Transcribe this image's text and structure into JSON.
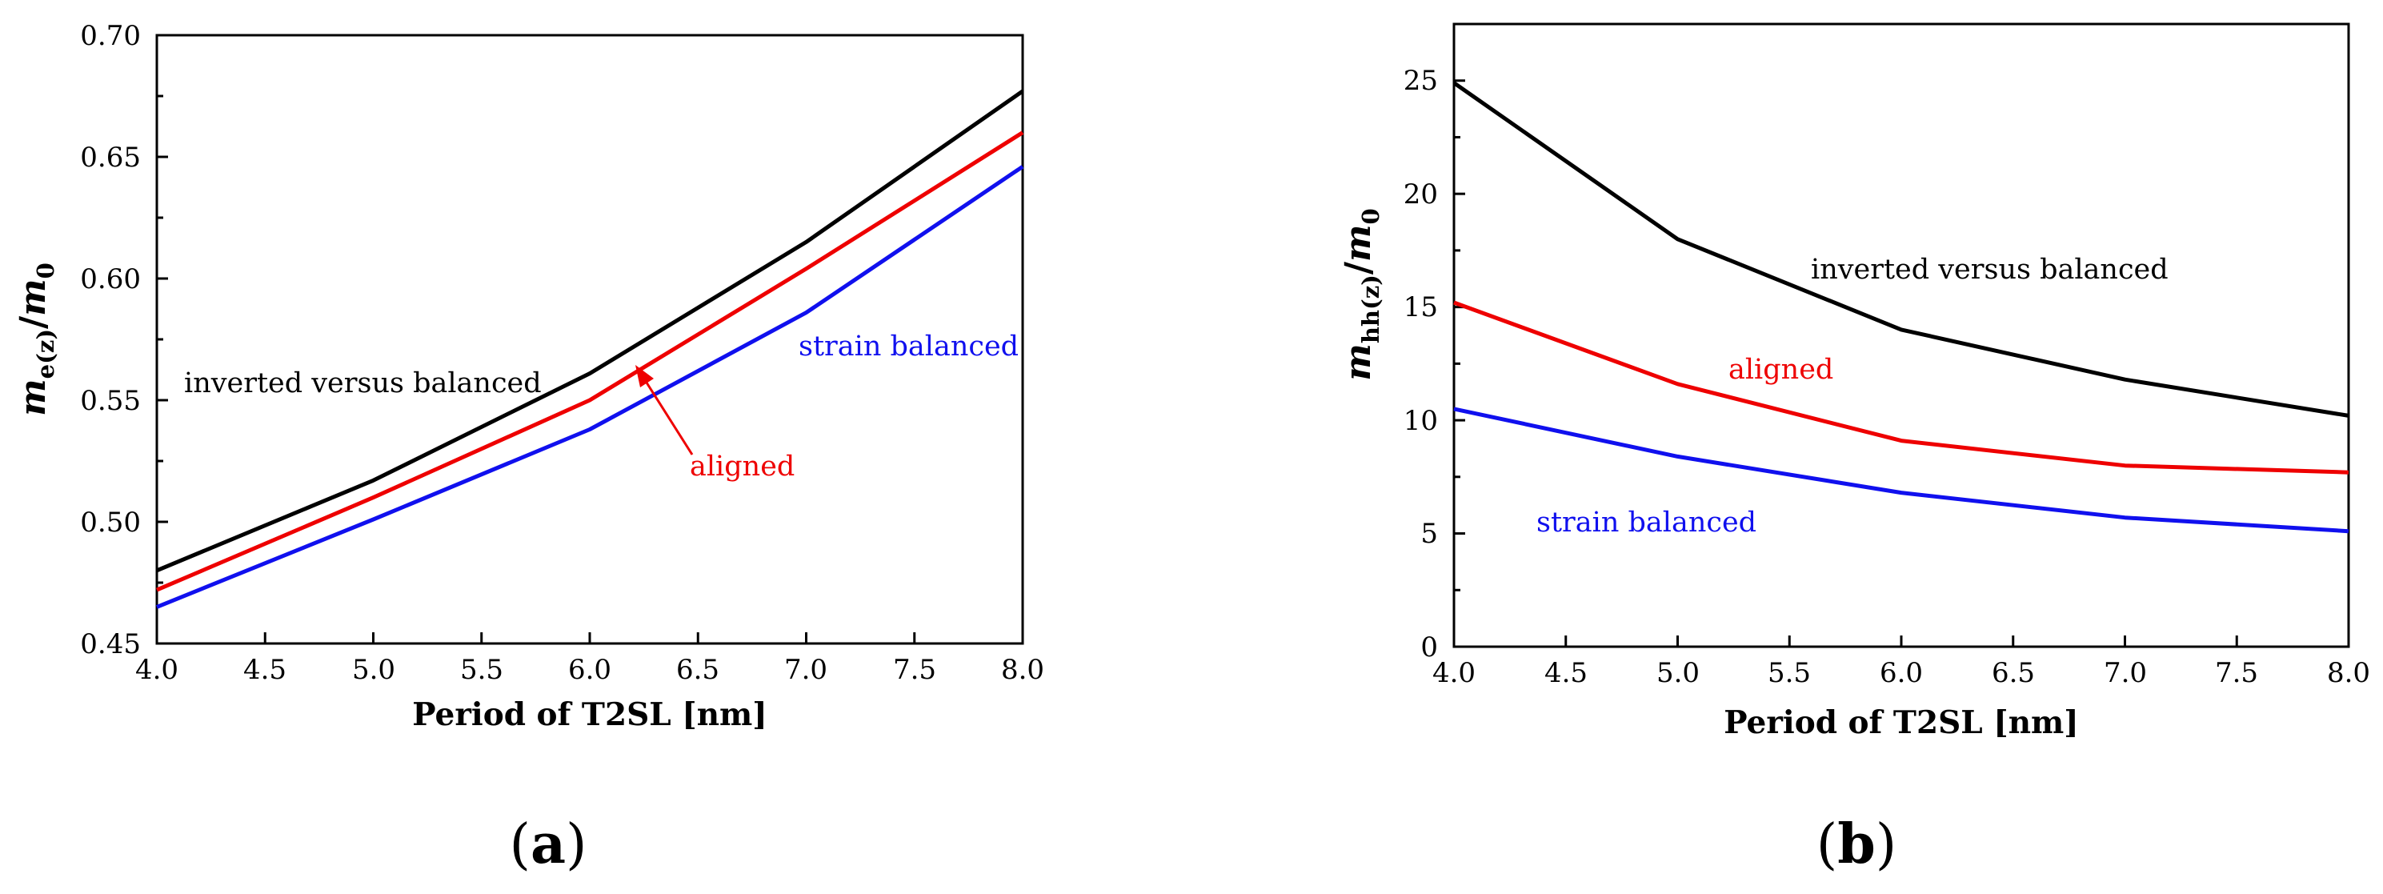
{
  "chart_data": [
    {
      "type": "line",
      "panel": "a",
      "panel_label": "(a)",
      "xlabel": "Period of T2SL [nm]",
      "ylabel": {
        "main": "m",
        "sub": "e(z)",
        "slash": "/",
        "main2": "m",
        "sub2": "0"
      },
      "xlim": [
        4.0,
        8.0
      ],
      "ylim": [
        0.45,
        0.7
      ],
      "xticks": [
        "4.0",
        "4.5",
        "5.0",
        "5.5",
        "6.0",
        "6.5",
        "7.0",
        "7.5",
        "8.0"
      ],
      "yticks": [
        "0.45",
        "0.50",
        "0.55",
        "0.60",
        "0.65",
        "0.70"
      ],
      "x": [
        4.0,
        5.0,
        6.0,
        7.0,
        8.0
      ],
      "series": [
        {
          "name": "inverted versus balanced",
          "color": "#000000",
          "values": [
            0.48,
            0.517,
            0.561,
            0.615,
            0.677
          ]
        },
        {
          "name": "aligned",
          "color": "#ee0000",
          "values": [
            0.472,
            0.51,
            0.55,
            0.604,
            0.66
          ]
        },
        {
          "name": "strain balanced",
          "color": "#1010ee",
          "values": [
            0.465,
            0.501,
            0.538,
            0.586,
            0.646
          ]
        }
      ],
      "annotations": [
        {
          "text": "inverted versus balanced",
          "color": "#000000"
        },
        {
          "text": "aligned",
          "color": "#ee0000",
          "arrow": true
        },
        {
          "text": "strain balanced",
          "color": "#1010ee"
        }
      ]
    },
    {
      "type": "line",
      "panel": "b",
      "panel_label": "(b)",
      "xlabel": "Period of T2SL [nm]",
      "ylabel": {
        "main": "m",
        "sub": "hh(z)",
        "slash": "/",
        "main2": "m",
        "sub2": "0"
      },
      "xlim": [
        4.0,
        8.0
      ],
      "ylim": [
        0,
        27.5
      ],
      "xticks": [
        "4.0",
        "4.5",
        "5.0",
        "5.5",
        "6.0",
        "6.5",
        "7.0",
        "7.5",
        "8.0"
      ],
      "yticks": [
        "0",
        "5",
        "10",
        "15",
        "20",
        "25"
      ],
      "x": [
        4.0,
        5.0,
        6.0,
        7.0,
        8.0
      ],
      "series": [
        {
          "name": "inverted versus balanced",
          "color": "#000000",
          "values": [
            24.9,
            18.0,
            14.0,
            11.8,
            10.2
          ]
        },
        {
          "name": "aligned",
          "color": "#ee0000",
          "values": [
            15.2,
            11.6,
            9.1,
            8.0,
            7.7
          ]
        },
        {
          "name": "strain balanced",
          "color": "#1010ee",
          "values": [
            10.5,
            8.4,
            6.8,
            5.7,
            5.1
          ]
        }
      ],
      "annotations": [
        {
          "text": "inverted versus balanced",
          "color": "#000000"
        },
        {
          "text": "aligned",
          "color": "#ee0000"
        },
        {
          "text": "strain balanced",
          "color": "#1010ee"
        }
      ]
    }
  ]
}
